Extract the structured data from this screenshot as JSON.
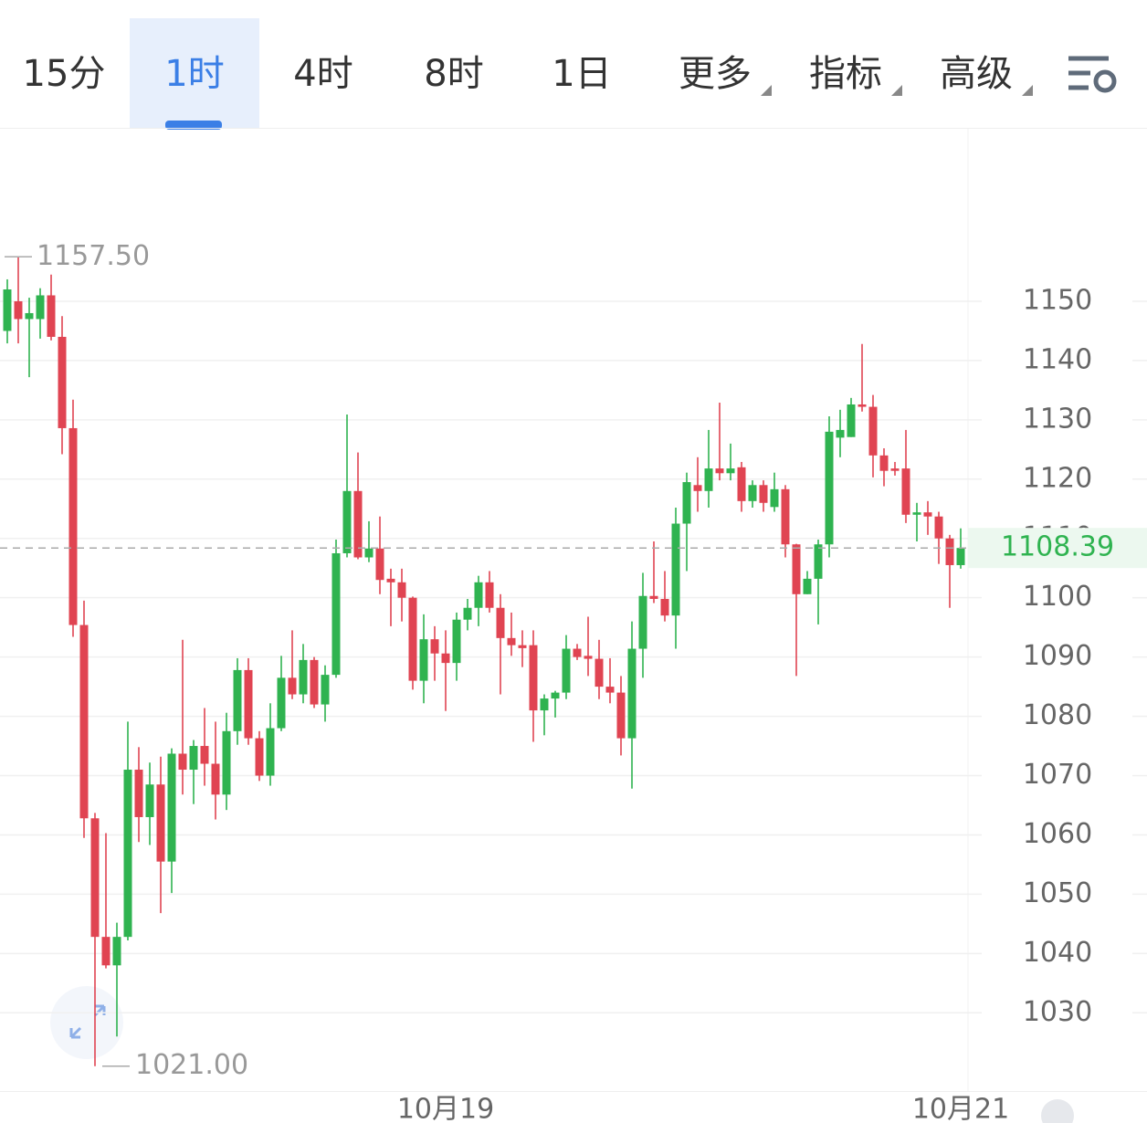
{
  "toolbar": {
    "tabs": [
      "15分",
      "1时",
      "4时",
      "8时",
      "1日"
    ],
    "menus": [
      "更多",
      "指标",
      "高级"
    ],
    "selected": 1
  },
  "chart_data": {
    "type": "candlestick",
    "categories": [
      null,
      null,
      null,
      null,
      null,
      null,
      null,
      null,
      null,
      null,
      null,
      null,
      null,
      null,
      null,
      null,
      null,
      null,
      null,
      null,
      null,
      null,
      null,
      null,
      null,
      null,
      null,
      null,
      null,
      null,
      null,
      null,
      null,
      null,
      null,
      null,
      null,
      null,
      null,
      null,
      "10月19",
      null,
      null,
      null,
      null,
      null,
      null,
      null,
      null,
      null,
      null,
      null,
      null,
      null,
      null,
      null,
      null,
      null,
      null,
      null,
      null,
      null,
      null,
      null,
      null,
      null,
      null,
      null,
      null,
      null,
      null,
      null,
      null,
      null,
      null,
      null,
      null,
      null,
      null,
      null,
      null,
      null,
      null,
      null,
      null,
      null,
      null,
      "10月21"
    ],
    "open": [
      1145,
      1150,
      1147,
      1147,
      1151,
      1144,
      1128.6,
      1095.4,
      1062.8,
      1042.8,
      1038,
      1042.8,
      1071,
      1063,
      1068.5,
      1055.5,
      1073.7,
      1071,
      1075,
      1072,
      1066.8,
      1077.5,
      1087.8,
      1076.3,
      1070,
      1078,
      1086.5,
      1083.7,
      1089.5,
      1082,
      1087,
      1107.5,
      1118,
      1106.8,
      1108.3,
      1103.2,
      1102.6,
      1100,
      1086,
      1093,
      1090.6,
      1089,
      1096.3,
      1098.3,
      1102.6,
      1098.3,
      1093.2,
      1092,
      1092,
      1081,
      1083,
      1084,
      1091.4,
      1090.2,
      1089.7,
      1085,
      1084,
      1076.3,
      1091.4,
      1100.3,
      1099.8,
      1097,
      1112.5,
      1119,
      1118,
      1121.8,
      1121,
      1122,
      1116.3,
      1119,
      1115.3,
      1118.3,
      1109,
      1100.6,
      1103.2,
      1109,
      1127,
      1127.1,
      1132.6,
      1132.2,
      1124,
      1121.8,
      1121.8,
      1114,
      1114.4,
      1113.7,
      1110,
      1105.5
    ],
    "high": [
      1153.7,
      1157.5,
      1150.6,
      1152.2,
      1154.5,
      1147.5,
      1133.4,
      1099.5,
      1063.7,
      1060.3,
      1045.2,
      1079.1,
      1074.8,
      1072.2,
      1073.2,
      1074.6,
      1092.9,
      1076,
      1081.4,
      1079.1,
      1080.6,
      1089.8,
      1089.8,
      1077.5,
      1082.2,
      1090.2,
      1094.5,
      1092.2,
      1090,
      1088.6,
      1109.8,
      1130.9,
      1124.5,
      1112.9,
      1113.7,
      1104.9,
      1104.9,
      1100.2,
      1097.2,
      1095.2,
      1094.5,
      1097.5,
      1099.8,
      1103.7,
      1104.5,
      1100.6,
      1097.5,
      1094.5,
      1094.5,
      1083.7,
      1084.3,
      1093.7,
      1092.2,
      1096.8,
      1092.9,
      1089.8,
      1086.8,
      1096,
      1104.2,
      1109.5,
      1104.5,
      1115.2,
      1121.1,
      1123.7,
      1128.3,
      1132.9,
      1126,
      1122.9,
      1119.8,
      1119.8,
      1121.1,
      1119,
      1109.1,
      1104.5,
      1109.8,
      1130.6,
      1131.7,
      1133.7,
      1142.8,
      1134.2,
      1125.2,
      1122.9,
      1128.3,
      1116,
      1116.3,
      1114.5,
      1110.6,
      1111.7
    ],
    "low": [
      1142.9,
      1142.9,
      1137.2,
      1143.7,
      1143.4,
      1124.2,
      1093.4,
      1059.5,
      1021,
      1037.5,
      1026,
      1042.2,
      1058.8,
      1058.3,
      1046.8,
      1050.2,
      1066.8,
      1065.2,
      1068.3,
      1062.6,
      1064.2,
      1075.2,
      1075.2,
      1069.1,
      1068.3,
      1077.5,
      1082.9,
      1082.2,
      1081.4,
      1079.1,
      1086.5,
      1106.8,
      1106.5,
      1106,
      1100.6,
      1095.2,
      1096,
      1084.5,
      1082.2,
      1086,
      1080.9,
      1086,
      1094.5,
      1095.2,
      1097.5,
      1083.7,
      1090.2,
      1088.3,
      1075.7,
      1076.8,
      1079.8,
      1082.9,
      1089.5,
      1086.8,
      1082.9,
      1082.2,
      1073.4,
      1067.8,
      1086.5,
      1099.1,
      1096,
      1091.4,
      1104.5,
      1114.5,
      1115.2,
      1119.8,
      1119.8,
      1114.5,
      1115.2,
      1114.5,
      1114.5,
      1106.8,
      1086.8,
      1100.6,
      1095.5,
      1106.8,
      1123.7,
      1127.1,
      1131.4,
      1120.3,
      1118.8,
      1120.6,
      1112.6,
      1109.5,
      1110.6,
      1105.7,
      1098.3,
      1104.9
    ],
    "close": [
      1152,
      1147,
      1148,
      1151,
      1144,
      1128.6,
      1095.4,
      1062.8,
      1042.8,
      1038,
      1042.8,
      1071,
      1063,
      1068.5,
      1055.5,
      1073.7,
      1071,
      1075,
      1072,
      1066.8,
      1077.5,
      1087.8,
      1076.3,
      1070,
      1078,
      1086.5,
      1083.7,
      1089.5,
      1082,
      1087,
      1107.5,
      1118,
      1106.8,
      1108.3,
      1103,
      1102.6,
      1100,
      1086,
      1093,
      1090.6,
      1089,
      1096.3,
      1098.3,
      1102.6,
      1098.3,
      1093.2,
      1092,
      1091.5,
      1081,
      1083,
      1084,
      1091.4,
      1090,
      1089.7,
      1085,
      1084,
      1076.3,
      1091.4,
      1100.3,
      1099.8,
      1097,
      1112.5,
      1119.5,
      1118,
      1121.8,
      1121,
      1121.8,
      1116.3,
      1119,
      1116,
      1118.3,
      1109,
      1100.6,
      1103.2,
      1109,
      1128,
      1128.3,
      1132.6,
      1132.2,
      1124,
      1121.4,
      1121.4,
      1114,
      1114.4,
      1113.7,
      1110,
      1105.5,
      1108.39
    ],
    "up_color": "#2fb350",
    "down_color": "#e04452",
    "ylim": [
      1016.8,
      1179.1
    ],
    "yticks": [
      1030,
      1040,
      1050,
      1060,
      1070,
      1080,
      1090,
      1100,
      1110,
      1120,
      1130,
      1140,
      1150
    ],
    "grid": true,
    "max_label": {
      "value": 1157.5,
      "label": "1157.50"
    },
    "min_label": {
      "value": 1021,
      "label": "1021.00"
    },
    "last_price": {
      "value": 1108.39,
      "label": "1108.39"
    }
  }
}
